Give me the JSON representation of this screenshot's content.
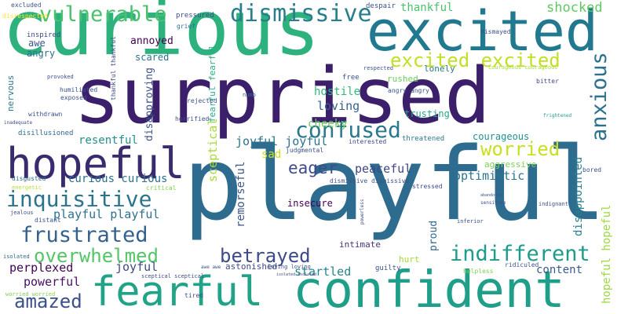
{
  "background": "#ffffff",
  "words": [
    {
      "text": "surprised",
      "color": "#3b1f6b"
    },
    {
      "text": "playful",
      "color": "#2d6c8e"
    },
    {
      "text": "curious",
      "color": "#2db27d"
    },
    {
      "text": "excited",
      "color": "#21798f"
    },
    {
      "text": "confident",
      "color": "#1f9e89"
    },
    {
      "text": "fearful",
      "color": "#20a386"
    },
    {
      "text": "hopeful",
      "color": "#3a2a6e"
    },
    {
      "text": "dismissive",
      "color": "#277f8e"
    },
    {
      "text": "vulnerable",
      "color": "#4ac16d"
    },
    {
      "text": "excited excited",
      "color": "#c2df23"
    },
    {
      "text": "confused",
      "color": "#2a788e"
    },
    {
      "text": "worried",
      "color": "#c8e020"
    },
    {
      "text": "anxious",
      "color": "#2c718e"
    },
    {
      "text": "inquisitive",
      "color": "#2b748e"
    },
    {
      "text": "frustrated",
      "color": "#34618d"
    },
    {
      "text": "overwhelmed",
      "color": "#55c667"
    },
    {
      "text": "indifferent",
      "color": "#1e9b8a"
    },
    {
      "text": "betrayed",
      "color": "#3e4a89"
    },
    {
      "text": "amazed",
      "color": "#3b518b"
    },
    {
      "text": "eager",
      "color": "#3e4c8a"
    },
    {
      "text": "thankful",
      "color": "#4ac16d"
    },
    {
      "text": "shocked",
      "color": "#5ec962"
    },
    {
      "text": "loving",
      "color": "#33638d"
    },
    {
      "text": "hostile",
      "color": "#32b67a"
    },
    {
      "text": "cheeky",
      "color": "#6ccd5a"
    },
    {
      "text": "joyful joyful",
      "color": "#2c738e"
    },
    {
      "text": "sad",
      "color": "#d0e11c"
    },
    {
      "text": "peaceful",
      "color": "#3f4788"
    },
    {
      "text": "optimistic",
      "color": "#2a768e"
    },
    {
      "text": "courageous",
      "color": "#21918c"
    },
    {
      "text": "aggressive",
      "color": "#7ad151"
    },
    {
      "text": "disappointed",
      "color": "#277f8e"
    },
    {
      "text": "hopeful hopeful",
      "color": "#9bd93c"
    },
    {
      "text": "curious curious",
      "color": "#2d708e"
    },
    {
      "text": "playful playful",
      "color": "#2c718e"
    },
    {
      "text": "resentful",
      "color": "#21918c"
    },
    {
      "text": "sceptical",
      "color": "#a8db34"
    },
    {
      "text": "fearful fearful",
      "color": "#25ac82"
    },
    {
      "text": "disapproving",
      "color": "#3b528b"
    },
    {
      "text": "remorseful",
      "color": "#39568c"
    },
    {
      "text": "perplexed",
      "color": "#440154"
    },
    {
      "text": "joyful",
      "color": "#3e4989"
    },
    {
      "text": "powerful",
      "color": "#471063"
    },
    {
      "text": "startled",
      "color": "#25848e"
    },
    {
      "text": "content",
      "color": "#38598c"
    },
    {
      "text": "proud",
      "color": "#31668e"
    },
    {
      "text": "trusting",
      "color": "#22a884"
    },
    {
      "text": "annoyed",
      "color": "#440154"
    },
    {
      "text": "awe",
      "color": "#3b528b"
    },
    {
      "text": "angry",
      "color": "#2e6f8e"
    },
    {
      "text": "scared",
      "color": "#2c738e"
    },
    {
      "text": "lonely",
      "color": "#2a788e"
    },
    {
      "text": "rushed",
      "color": "#6ccd5a"
    },
    {
      "text": "free",
      "color": "#3b528b"
    },
    {
      "text": "insecure",
      "color": "#440154"
    },
    {
      "text": "intimate",
      "color": "#46337e"
    },
    {
      "text": "astonished",
      "color": "#3e4a89"
    },
    {
      "text": "hurt",
      "color": "#a5db36"
    },
    {
      "text": "nervous",
      "color": "#2a788e"
    },
    {
      "text": "inspired",
      "color": "#3e4a89"
    },
    {
      "text": "excluded",
      "color": "#3b528b"
    },
    {
      "text": "disrespected",
      "color": "#fde725"
    },
    {
      "text": "pressured",
      "color": "#3e4c8a"
    },
    {
      "text": "despair",
      "color": "#3b528b"
    },
    {
      "text": "dismayed",
      "color": "#3b528b"
    },
    {
      "text": "grief",
      "color": "#2c728e"
    },
    {
      "text": "thankful thankful",
      "color": "#3e4c8a"
    },
    {
      "text": "humiliated",
      "color": "#3b528b"
    },
    {
      "text": "exposed",
      "color": "#3b528b"
    },
    {
      "text": "withdrawn",
      "color": "#3b528b"
    },
    {
      "text": "inadequate",
      "color": "#3e4a89"
    },
    {
      "text": "disillusioned",
      "color": "#31688e"
    },
    {
      "text": "horrified",
      "color": "#3e4c8a"
    },
    {
      "text": "rejected",
      "color": "#3b528b"
    },
    {
      "text": "numb",
      "color": "#31688e"
    },
    {
      "text": "respected",
      "color": "#3b528b"
    },
    {
      "text": "angry angry",
      "color": "#3b528b"
    },
    {
      "text": "courageous courageous",
      "color": "#a5db36"
    },
    {
      "text": "bitter",
      "color": "#3e4a89"
    },
    {
      "text": "frightened",
      "color": "#1f9e89"
    },
    {
      "text": "interested",
      "color": "#3e4c8a"
    },
    {
      "text": "threatened",
      "color": "#2a788e"
    },
    {
      "text": "judgmental",
      "color": "#3b528b"
    },
    {
      "text": "dismissive dismissive",
      "color": "#3b528b"
    },
    {
      "text": "stressed",
      "color": "#3e4c8a"
    },
    {
      "text": "bored",
      "color": "#3b528b"
    },
    {
      "text": "sensitive",
      "color": "#3e4c8a"
    },
    {
      "text": "abandoned",
      "color": "#3b528b"
    },
    {
      "text": "indignant",
      "color": "#3b528b"
    },
    {
      "text": "inferior",
      "color": "#3b528b"
    },
    {
      "text": "powerless",
      "color": "#3e4a89"
    },
    {
      "text": "disgusted",
      "color": "#31688e"
    },
    {
      "text": "energetic",
      "color": "#b5de2b"
    },
    {
      "text": "critical",
      "color": "#7ad151"
    },
    {
      "text": "jealous",
      "color": "#3b528b"
    },
    {
      "text": "distant",
      "color": "#3b528b"
    },
    {
      "text": "isolated",
      "color": "#31688e"
    },
    {
      "text": "worried worried",
      "color": "#7ad151"
    },
    {
      "text": "sceptical sceptical",
      "color": "#3e4c8a"
    },
    {
      "text": "awe awe",
      "color": "#3b528b"
    },
    {
      "text": "loving loving",
      "color": "#3b528b"
    },
    {
      "text": "isolated isolated",
      "color": "#3e4c8a"
    },
    {
      "text": "tired",
      "color": "#3e4c8a"
    },
    {
      "text": "guilty",
      "color": "#3b528b"
    },
    {
      "text": "helpless",
      "color": "#7ad151"
    },
    {
      "text": "ridiculed",
      "color": "#3b528b"
    },
    {
      "text": "provoked",
      "color": "#3b528b"
    }
  ]
}
